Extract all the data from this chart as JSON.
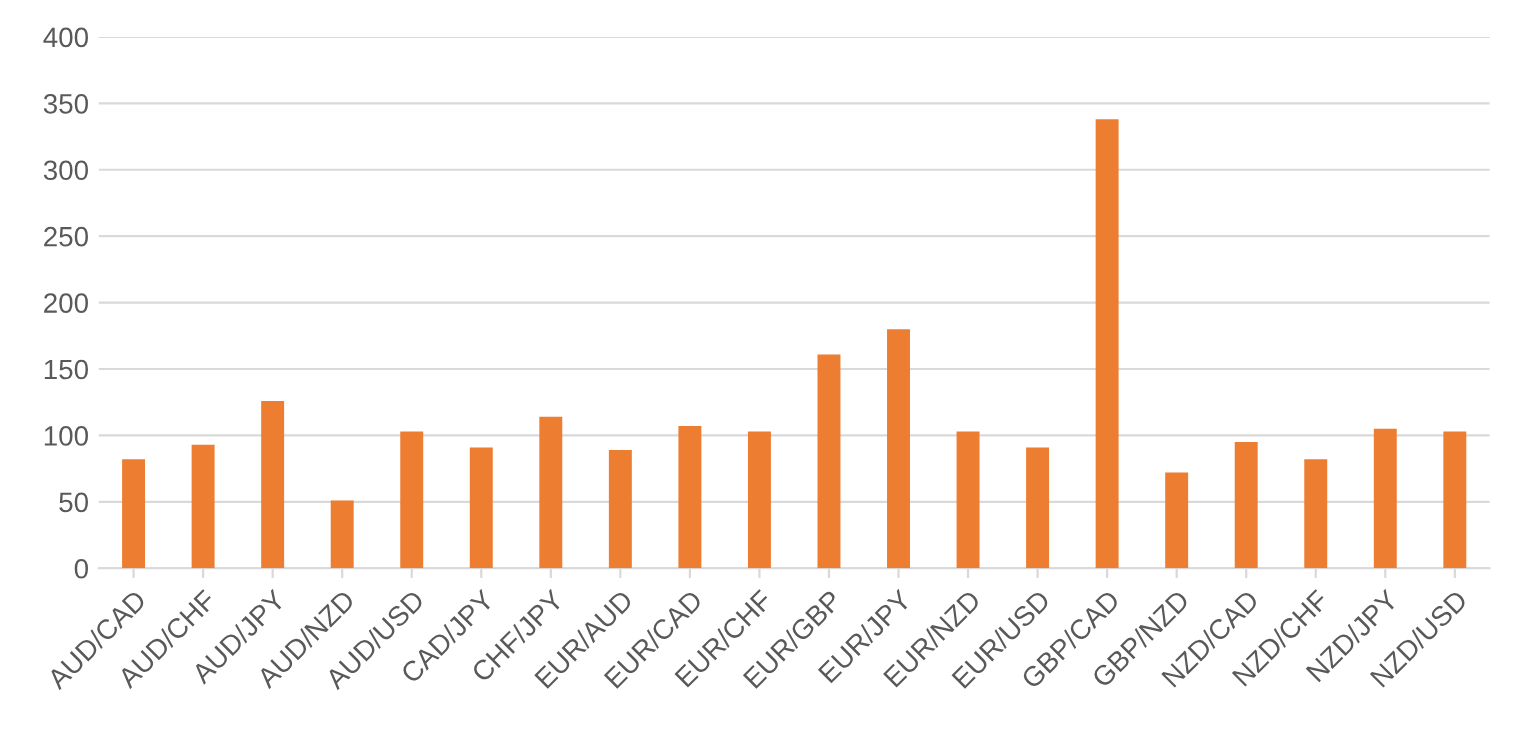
{
  "chart_data": {
    "type": "bar",
    "categories": [
      "AUD/CAD",
      "AUD/CHF",
      "AUD/JPY",
      "AUD/NZD",
      "AUD/USD",
      "CAD/JPY",
      "CHF/JPY",
      "EUR/AUD",
      "EUR/CAD",
      "EUR/CHF",
      "EUR/GBP",
      "EUR/JPY",
      "EUR/NZD",
      "EUR/USD",
      "GBP/CAD",
      "GBP/NZD",
      "NZD/CAD",
      "NZD/CHF",
      "NZD/JPY",
      "NZD/USD"
    ],
    "values": [
      82,
      93,
      126,
      51,
      103,
      91,
      114,
      89,
      107,
      103,
      161,
      180,
      103,
      91,
      338,
      72,
      95,
      82,
      105,
      103
    ],
    "color": "#ed7d31",
    "ylim": [
      0,
      400
    ],
    "yticks": [
      0,
      50,
      100,
      150,
      200,
      250,
      300,
      350,
      400
    ],
    "grid": "y"
  }
}
